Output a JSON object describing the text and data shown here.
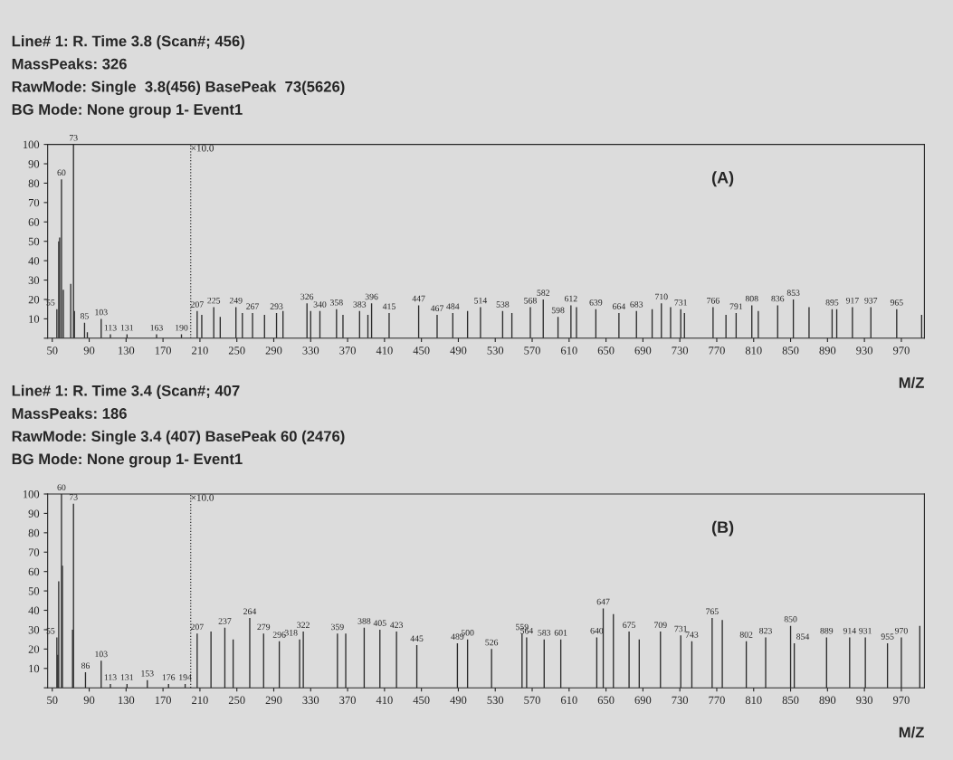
{
  "chart_data": [
    {
      "type": "bar",
      "title": "Line# 1: R. Time 3.8 (Scan#; 456)",
      "subtitle": "MassPeaks: 326",
      "xlabel": "M/Z",
      "color": "#2b2b2b",
      "grid": false,
      "legend": false,
      "x": [
        55,
        57,
        58,
        60,
        62,
        70,
        73,
        74,
        85,
        88,
        103,
        113,
        131,
        163,
        190,
        207,
        212,
        225,
        232,
        249,
        256,
        267,
        280,
        293,
        300,
        326,
        330,
        340,
        358,
        365,
        383,
        392,
        396,
        415,
        447,
        467,
        484,
        500,
        514,
        538,
        548,
        568,
        582,
        598,
        612,
        618,
        639,
        664,
        683,
        700,
        710,
        720,
        731,
        735,
        766,
        780,
        791,
        808,
        815,
        836,
        853,
        870,
        895,
        900,
        917,
        937,
        965,
        992
      ],
      "values": [
        15,
        50,
        52,
        82,
        25,
        28,
        100,
        14,
        8,
        3,
        10,
        2,
        2,
        2,
        2,
        14,
        12,
        16,
        11,
        16,
        13,
        13,
        12,
        13,
        14,
        18,
        14,
        14,
        15,
        12,
        14,
        12,
        18,
        13,
        17,
        12,
        13,
        14,
        16,
        14,
        13,
        16,
        20,
        11,
        17,
        16,
        15,
        13,
        14,
        15,
        18,
        16,
        15,
        13,
        16,
        12,
        13,
        17,
        14,
        17,
        20,
        16,
        15,
        15,
        16,
        16,
        15,
        12
      ],
      "xlim": [
        45,
        995
      ],
      "xticks": [
        50,
        90,
        130,
        170,
        210,
        250,
        290,
        330,
        370,
        410,
        450,
        490,
        530,
        570,
        610,
        650,
        690,
        730,
        770,
        810,
        850,
        890,
        930,
        970
      ],
      "ylim": [
        0,
        100
      ],
      "yticks": [
        {
          "value": 0,
          "label": null
        },
        10,
        20,
        30,
        40,
        50,
        60,
        70,
        80,
        90,
        100
      ],
      "ref_lines": [
        {
          "axis": "x",
          "value": 200,
          "label": "×10.0",
          "line_style": "dotted"
        }
      ],
      "annotations": [
        "RawMode: Single  3.8(456) BasePeak  73(5626)",
        "BG Mode: None group 1- Event1",
        "(A)",
        {
          "text": "55",
          "x": 55,
          "y": 15
        },
        {
          "text": "60",
          "x": 60,
          "y": 82
        },
        {
          "text": "73",
          "x": 73,
          "y": 100
        },
        {
          "text": "85",
          "x": 85,
          "y": 8
        },
        {
          "text": "103",
          "x": 103,
          "y": 10
        },
        {
          "text": "113",
          "x": 113,
          "y": 2
        },
        {
          "text": "131",
          "x": 131,
          "y": 2
        },
        {
          "text": "163",
          "x": 163,
          "y": 2
        },
        {
          "text": "190",
          "x": 190,
          "y": 2
        },
        {
          "text": "207",
          "x": 207,
          "y": 14
        },
        {
          "text": "225",
          "x": 225,
          "y": 16
        },
        {
          "text": "249",
          "x": 249,
          "y": 16
        },
        {
          "text": "267",
          "x": 267,
          "y": 13
        },
        {
          "text": "293",
          "x": 293,
          "y": 13
        },
        {
          "text": "326",
          "x": 326,
          "y": 18
        },
        {
          "text": "340",
          "x": 340,
          "y": 14
        },
        {
          "text": "358",
          "x": 358,
          "y": 15
        },
        {
          "text": "383",
          "x": 383,
          "y": 14
        },
        {
          "text": "396",
          "x": 396,
          "y": 18
        },
        {
          "text": "415",
          "x": 415,
          "y": 13
        },
        {
          "text": "447",
          "x": 447,
          "y": 17
        },
        {
          "text": "467",
          "x": 467,
          "y": 12
        },
        {
          "text": "484",
          "x": 484,
          "y": 13
        },
        {
          "text": "514",
          "x": 514,
          "y": 16
        },
        {
          "text": "538",
          "x": 538,
          "y": 14
        },
        {
          "text": "568",
          "x": 568,
          "y": 16
        },
        {
          "text": "582",
          "x": 582,
          "y": 20
        },
        {
          "text": "598",
          "x": 598,
          "y": 11
        },
        {
          "text": "612",
          "x": 612,
          "y": 17
        },
        {
          "text": "639",
          "x": 639,
          "y": 15
        },
        {
          "text": "664",
          "x": 664,
          "y": 13
        },
        {
          "text": "683",
          "x": 683,
          "y": 14
        },
        {
          "text": "710",
          "x": 710,
          "y": 18
        },
        {
          "text": "731",
          "x": 731,
          "y": 15
        },
        {
          "text": "766",
          "x": 766,
          "y": 16
        },
        {
          "text": "791",
          "x": 791,
          "y": 13
        },
        {
          "text": "808",
          "x": 808,
          "y": 17
        },
        {
          "text": "836",
          "x": 836,
          "y": 17
        },
        {
          "text": "853",
          "x": 853,
          "y": 20
        },
        {
          "text": "895",
          "x": 895,
          "y": 15
        },
        {
          "text": "917",
          "x": 917,
          "y": 16
        },
        {
          "text": "937",
          "x": 937,
          "y": 16
        },
        {
          "text": "965",
          "x": 965,
          "y": 15
        }
      ]
    },
    {
      "type": "bar",
      "title": "Line# 1: R. Time 3.4 (Scan#; 407",
      "subtitle": "MassPeaks: 186",
      "xlabel": "M/Z",
      "color": "#2b2b2b",
      "grid": false,
      "legend": false,
      "x": [
        55,
        56,
        57,
        60,
        61,
        72,
        73,
        86,
        103,
        113,
        131,
        153,
        176,
        194,
        207,
        222,
        237,
        246,
        264,
        279,
        296,
        318,
        322,
        359,
        368,
        388,
        405,
        423,
        445,
        489,
        500,
        526,
        559,
        564,
        583,
        601,
        640,
        647,
        658,
        675,
        686,
        709,
        731,
        743,
        765,
        776,
        802,
        823,
        850,
        854,
        889,
        914,
        931,
        955,
        970,
        990
      ],
      "values": [
        26,
        17,
        55,
        100,
        63,
        30,
        95,
        8,
        14,
        2,
        2,
        4,
        2,
        2,
        28,
        29,
        31,
        25,
        36,
        28,
        24,
        25,
        29,
        28,
        28,
        31,
        30,
        29,
        22,
        23,
        25,
        20,
        28,
        26,
        25,
        25,
        26,
        41,
        38,
        29,
        25,
        29,
        27,
        24,
        36,
        35,
        24,
        26,
        32,
        23,
        26,
        26,
        26,
        23,
        26,
        32
      ],
      "xlim": [
        45,
        995
      ],
      "xticks": [
        50,
        90,
        130,
        170,
        210,
        250,
        290,
        330,
        370,
        410,
        450,
        490,
        530,
        570,
        610,
        650,
        690,
        730,
        770,
        810,
        850,
        890,
        930,
        970
      ],
      "ylim": [
        0,
        100
      ],
      "yticks": [
        {
          "value": 0,
          "label": null
        },
        10,
        20,
        30,
        40,
        50,
        60,
        70,
        80,
        90,
        100
      ],
      "ref_lines": [
        {
          "axis": "x",
          "value": 200,
          "label": "×10.0",
          "line_style": "dotted"
        }
      ],
      "annotations": [
        "RawMode: Single 3.4 (407) BasePeak 60 (2476)",
        "BG Mode: None group 1- Event1",
        "(B)",
        {
          "text": "55",
          "x": 55,
          "y": 26
        },
        {
          "text": "60",
          "x": 60,
          "y": 100
        },
        {
          "text": "73",
          "x": 73,
          "y": 95
        },
        {
          "text": "86",
          "x": 86,
          "y": 8
        },
        {
          "text": "103",
          "x": 103,
          "y": 14
        },
        {
          "text": "113",
          "x": 113,
          "y": 2
        },
        {
          "text": "131",
          "x": 131,
          "y": 2
        },
        {
          "text": "153",
          "x": 153,
          "y": 4
        },
        {
          "text": "176",
          "x": 176,
          "y": 2
        },
        {
          "text": "194",
          "x": 194,
          "y": 2
        },
        {
          "text": "207",
          "x": 207,
          "y": 28
        },
        {
          "text": "237",
          "x": 237,
          "y": 31
        },
        {
          "text": "264",
          "x": 264,
          "y": 36
        },
        {
          "text": "279",
          "x": 279,
          "y": 28
        },
        {
          "text": "296",
          "x": 296,
          "y": 24
        },
        {
          "text": "318",
          "x": 318,
          "y": 25
        },
        {
          "text": "322",
          "x": 322,
          "y": 29
        },
        {
          "text": "359",
          "x": 359,
          "y": 28
        },
        {
          "text": "388",
          "x": 388,
          "y": 31
        },
        {
          "text": "405",
          "x": 405,
          "y": 30
        },
        {
          "text": "423",
          "x": 423,
          "y": 29
        },
        {
          "text": "445",
          "x": 445,
          "y": 22
        },
        {
          "text": "489",
          "x": 489,
          "y": 23
        },
        {
          "text": "500",
          "x": 500,
          "y": 25
        },
        {
          "text": "526",
          "x": 526,
          "y": 20
        },
        {
          "text": "559",
          "x": 559,
          "y": 28
        },
        {
          "text": "564",
          "x": 564,
          "y": 26
        },
        {
          "text": "583",
          "x": 583,
          "y": 25
        },
        {
          "text": "601",
          "x": 601,
          "y": 25
        },
        {
          "text": "640",
          "x": 640,
          "y": 26
        },
        {
          "text": "647",
          "x": 647,
          "y": 41
        },
        {
          "text": "675",
          "x": 675,
          "y": 29
        },
        {
          "text": "709",
          "x": 709,
          "y": 29
        },
        {
          "text": "731",
          "x": 731,
          "y": 27
        },
        {
          "text": "743",
          "x": 743,
          "y": 24
        },
        {
          "text": "765",
          "x": 765,
          "y": 36
        },
        {
          "text": "802",
          "x": 802,
          "y": 24
        },
        {
          "text": "823",
          "x": 823,
          "y": 26
        },
        {
          "text": "850",
          "x": 850,
          "y": 32
        },
        {
          "text": "854",
          "x": 854,
          "y": 23
        },
        {
          "text": "889",
          "x": 889,
          "y": 26
        },
        {
          "text": "914",
          "x": 914,
          "y": 26
        },
        {
          "text": "931",
          "x": 931,
          "y": 26
        },
        {
          "text": "955",
          "x": 955,
          "y": 23
        },
        {
          "text": "970",
          "x": 970,
          "y": 26
        }
      ]
    }
  ]
}
